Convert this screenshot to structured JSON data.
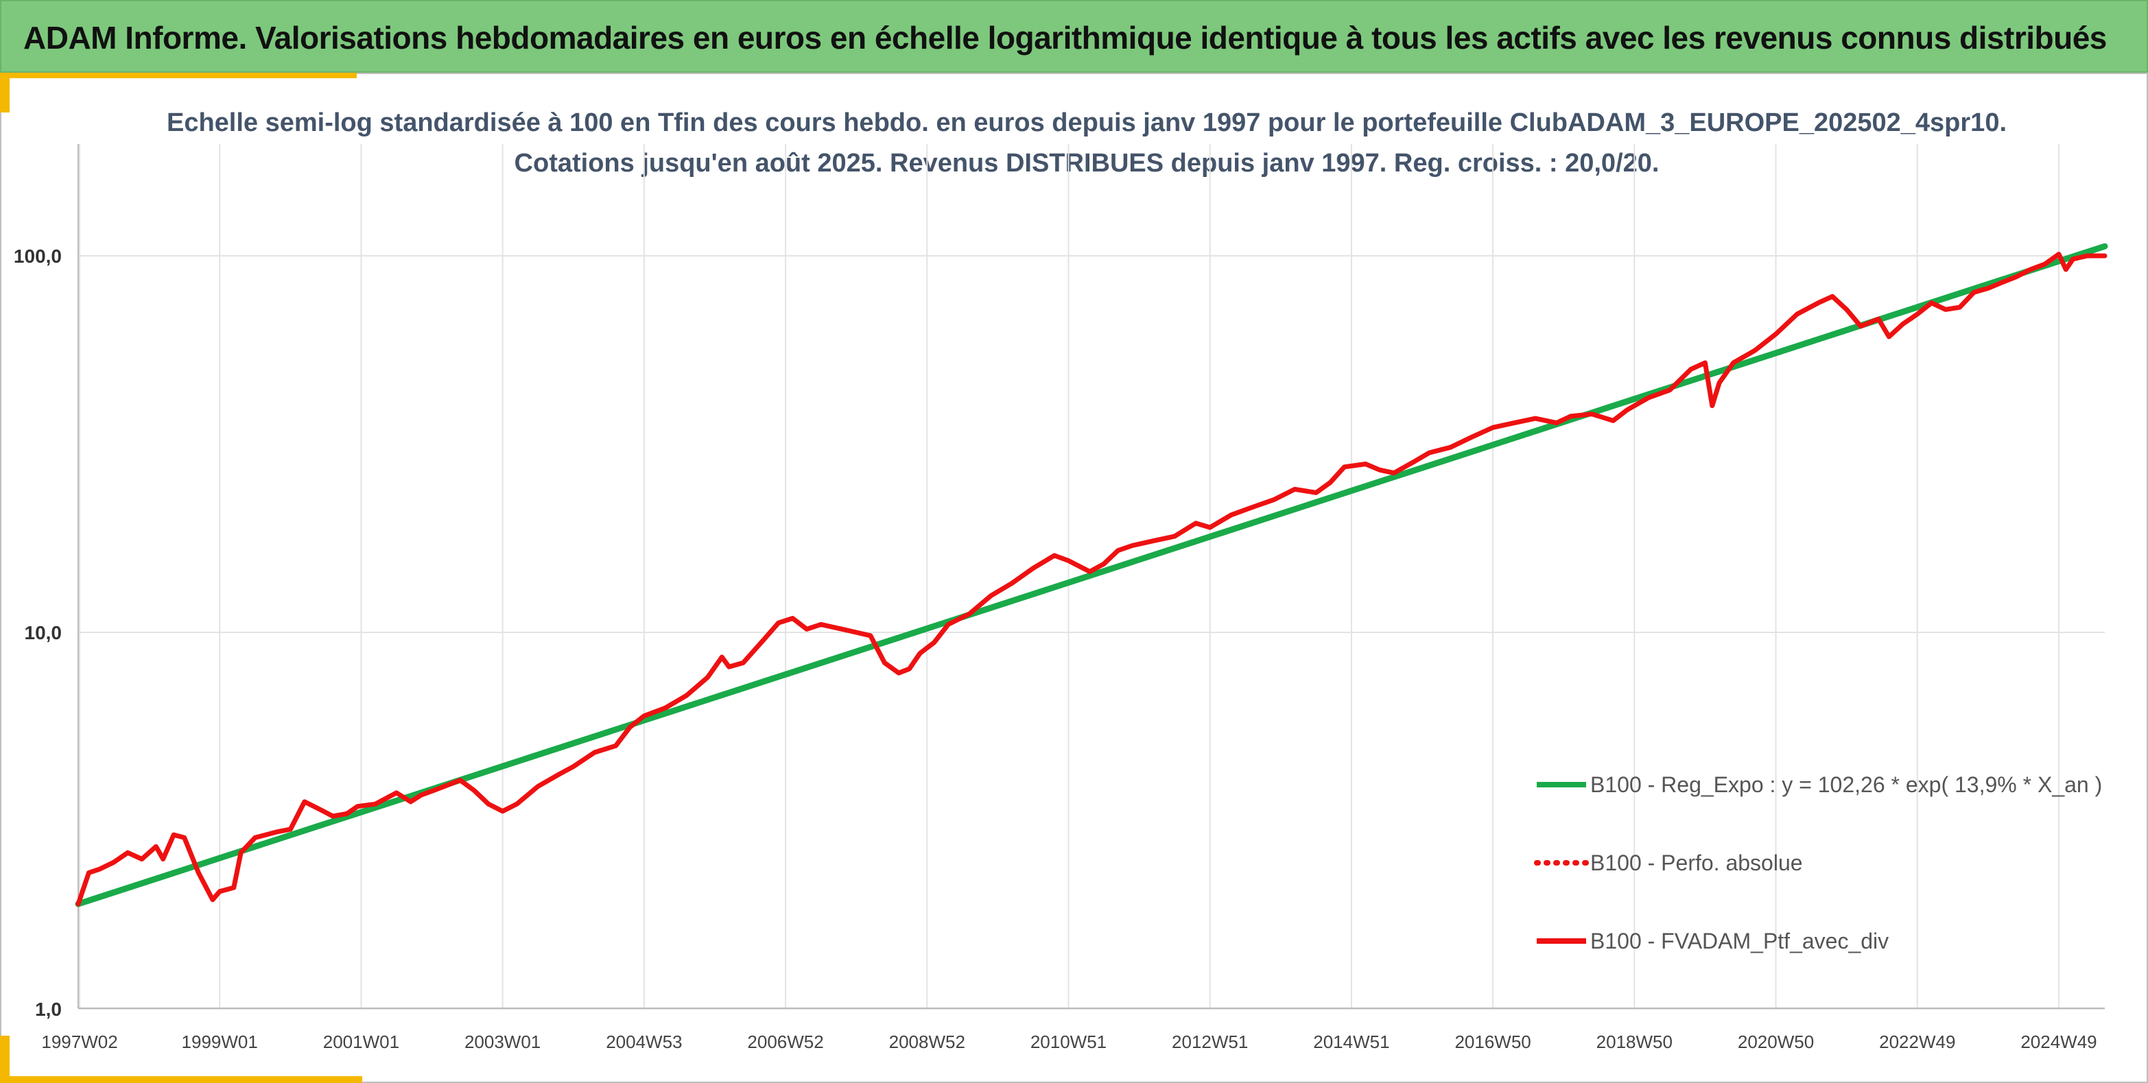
{
  "header": {
    "title": "ADAM Informe. Valorisations hebdomadaires en euros en échelle logarithmique identique à tous les actifs avec les revenus connus distribués"
  },
  "colors": {
    "banner": "#7dc87d",
    "accent": "#f5b800",
    "regression": "#1aaa4a",
    "portfolio": "#ee1111",
    "grid": "#e3e3e3"
  },
  "chart_data": {
    "type": "line",
    "title": "Echelle semi-log standardisée à 100 en Tfin des cours hebdo. en euros depuis janv 1997 pour le portefeuille ClubADAM_3_EUROPE_202502_4spr10.",
    "subtitle": "Cotations jusqu'en août 2025. Revenus DISTRIBUES depuis janv 1997. Reg. croiss. : 20,0/20.",
    "y_scale": "log",
    "ylim": [
      1,
      200
    ],
    "y_ticks": [
      {
        "value": 1,
        "label": "1,0"
      },
      {
        "value": 10,
        "label": "10,0"
      },
      {
        "value": 100,
        "label": "100,0"
      }
    ],
    "xlim": [
      1997.0,
      2025.65
    ],
    "x_ticks": [
      {
        "x": 1997.02,
        "label": "1997W02"
      },
      {
        "x": 1999.0,
        "label": "1999W01"
      },
      {
        "x": 2001.0,
        "label": "2001W01"
      },
      {
        "x": 2003.0,
        "label": "2003W01"
      },
      {
        "x": 2005.0,
        "label": "2004W53"
      },
      {
        "x": 2007.0,
        "label": "2006W52"
      },
      {
        "x": 2009.0,
        "label": "2008W52"
      },
      {
        "x": 2011.0,
        "label": "2010W51"
      },
      {
        "x": 2013.0,
        "label": "2012W51"
      },
      {
        "x": 2015.0,
        "label": "2014W51"
      },
      {
        "x": 2017.0,
        "label": "2016W50"
      },
      {
        "x": 2019.0,
        "label": "2018W50"
      },
      {
        "x": 2021.0,
        "label": "2020W50"
      },
      {
        "x": 2023.0,
        "label": "2022W49"
      },
      {
        "x": 2025.0,
        "label": "2024W49"
      }
    ],
    "grid": true,
    "legend_position": "right",
    "series": [
      {
        "name": "B100 - Reg_Expo : y = 102,26 * exp( 13,9% *  X_an )",
        "color": "#1aaa4a",
        "style": "solid",
        "x": [
          1997.0,
          2025.65
        ],
        "y": [
          1.9,
          106
        ]
      },
      {
        "name": "B100 - Perfo. absolue",
        "color": "#ee1111",
        "style": "dotted",
        "x": [],
        "y": []
      },
      {
        "name": "B100 - FVADAM_Ptf_avec_div",
        "color": "#ee1111",
        "style": "solid",
        "x": [
          1997.0,
          1997.15,
          1997.3,
          1997.5,
          1997.7,
          1997.9,
          1998.1,
          1998.2,
          1998.35,
          1998.5,
          1998.7,
          1998.9,
          1999.0,
          1999.2,
          1999.3,
          1999.5,
          1999.8,
          2000.0,
          2000.2,
          2000.4,
          2000.6,
          2000.8,
          2000.95,
          2001.2,
          2001.5,
          2001.7,
          2001.85,
          2002.1,
          2002.4,
          2002.6,
          2002.8,
          2003.0,
          2003.2,
          2003.5,
          2003.8,
          2004.0,
          2004.3,
          2004.6,
          2004.8,
          2005.0,
          2005.3,
          2005.6,
          2005.9,
          2006.1,
          2006.2,
          2006.4,
          2006.7,
          2006.9,
          2007.1,
          2007.3,
          2007.5,
          2007.8,
          2008.0,
          2008.2,
          2008.4,
          2008.6,
          2008.75,
          2008.9,
          2009.1,
          2009.3,
          2009.6,
          2009.9,
          2010.2,
          2010.5,
          2010.8,
          2011.0,
          2011.3,
          2011.5,
          2011.7,
          2011.9,
          2012.2,
          2012.5,
          2012.8,
          2013.0,
          2013.3,
          2013.6,
          2013.9,
          2014.2,
          2014.5,
          2014.7,
          2014.9,
          2015.2,
          2015.4,
          2015.6,
          2015.9,
          2016.1,
          2016.4,
          2016.7,
          2017.0,
          2017.3,
          2017.6,
          2017.9,
          2018.1,
          2018.4,
          2018.7,
          2018.9,
          2019.2,
          2019.5,
          2019.8,
          2020.0,
          2020.1,
          2020.2,
          2020.4,
          2020.7,
          2021.0,
          2021.3,
          2021.6,
          2021.8,
          2022.0,
          2022.2,
          2022.45,
          2022.6,
          2022.8,
          2023.0,
          2023.2,
          2023.4,
          2023.6,
          2023.8,
          2024.0,
          2024.2,
          2024.4,
          2024.6,
          2024.8,
          2025.0,
          2025.1,
          2025.2,
          2025.4,
          2025.65
        ],
        "y": [
          1.9,
          2.3,
          2.35,
          2.45,
          2.6,
          2.5,
          2.7,
          2.5,
          2.9,
          2.85,
          2.3,
          1.95,
          2.05,
          2.1,
          2.6,
          2.85,
          2.95,
          3.0,
          3.55,
          3.4,
          3.25,
          3.3,
          3.45,
          3.5,
          3.75,
          3.55,
          3.7,
          3.85,
          4.05,
          3.8,
          3.5,
          3.35,
          3.5,
          3.9,
          4.2,
          4.4,
          4.8,
          5.0,
          5.6,
          6.0,
          6.3,
          6.8,
          7.6,
          8.6,
          8.1,
          8.3,
          9.6,
          10.6,
          10.9,
          10.2,
          10.5,
          10.2,
          10.0,
          9.8,
          8.3,
          7.8,
          8.0,
          8.8,
          9.4,
          10.5,
          11.2,
          12.5,
          13.5,
          14.8,
          16.0,
          15.5,
          14.5,
          15.2,
          16.5,
          17.0,
          17.5,
          18.0,
          19.5,
          19.0,
          20.5,
          21.5,
          22.5,
          24.0,
          23.5,
          25.0,
          27.5,
          28.0,
          27.0,
          26.5,
          28.5,
          30.0,
          31.0,
          33.0,
          35.0,
          36.0,
          37.0,
          36.0,
          37.5,
          38.0,
          36.5,
          39.0,
          42.0,
          44.0,
          50.0,
          52.0,
          40.0,
          46.0,
          52.0,
          56.0,
          62.0,
          70.0,
          75.0,
          78.0,
          72.0,
          65.0,
          68.0,
          61.0,
          66.0,
          70.0,
          75.0,
          72.0,
          73.0,
          80.0,
          82.0,
          85.0,
          88.0,
          92.0,
          95.0,
          101.0,
          92.0,
          98.0,
          100.0,
          100.0
        ]
      }
    ]
  }
}
